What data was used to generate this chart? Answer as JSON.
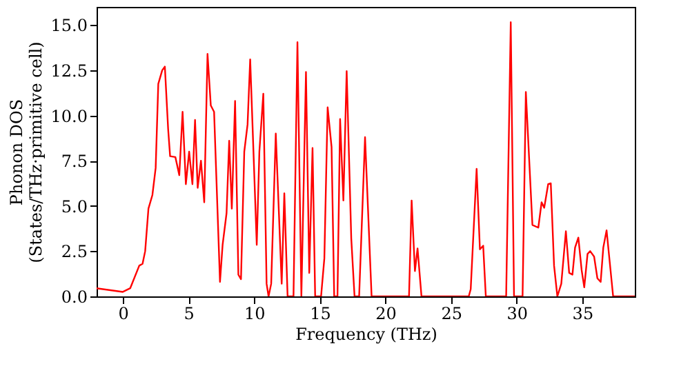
{
  "chart_data": {
    "type": "line",
    "xlabel": "Frequency (THz)",
    "ylabel": "Phonon DOS\n(States/THz·primitive cell)",
    "xlim": [
      -2,
      39
    ],
    "xticks": [
      0,
      5,
      10,
      15,
      20,
      25,
      30,
      35
    ],
    "ylim": [
      0,
      16
    ],
    "yticks": [
      {
        "value": 0,
        "label": "0.0"
      },
      {
        "value": 2.5,
        "label": "2.5"
      },
      {
        "value": 5,
        "label": "5.0"
      },
      {
        "value": 7.5,
        "label": "7.5"
      },
      {
        "value": 10,
        "label": "10.0"
      },
      {
        "value": 12.5,
        "label": "12.5"
      },
      {
        "value": 15,
        "label": "15.0"
      }
    ],
    "grid": false,
    "line_style": "solid",
    "marker": "none",
    "series": [
      {
        "color": "#ff0000",
        "x": [
          -2,
          0,
          0.56,
          1.25,
          1.5,
          1.7,
          1.95,
          2.25,
          2.5,
          2.7,
          3.0,
          3.2,
          3.45,
          3.6,
          4.0,
          4.3,
          4.55,
          4.8,
          5.05,
          5.3,
          5.5,
          5.7,
          5.95,
          6.2,
          6.45,
          6.7,
          6.95,
          7.4,
          7.6,
          7.9,
          8.1,
          8.3,
          8.55,
          8.8,
          9.0,
          9.25,
          9.5,
          9.7,
          9.95,
          10.2,
          10.4,
          10.7,
          10.95,
          11.1,
          11.3,
          11.65,
          12.1,
          12.3,
          12.55,
          13.0,
          13.3,
          13.6,
          13.95,
          14.2,
          14.45,
          14.65,
          15.1,
          15.35,
          15.6,
          15.9,
          16.1,
          16.35,
          16.55,
          16.8,
          17.05,
          17.4,
          17.65,
          18.0,
          18.45,
          18.95,
          21.8,
          22.0,
          22.25,
          22.45,
          22.75,
          26.35,
          26.5,
          26.95,
          27.2,
          27.45,
          27.65,
          29.2,
          29.55,
          29.8,
          30.45,
          30.7,
          31.2,
          31.65,
          31.9,
          32.1,
          32.4,
          32.6,
          32.85,
          33.1,
          33.4,
          33.75,
          34.0,
          34.25,
          34.45,
          34.7,
          34.95,
          35.15,
          35.4,
          35.6,
          35.9,
          36.15,
          36.4,
          36.6,
          36.85,
          37.35,
          39
        ],
        "values": [
          0.45,
          0.25,
          0.45,
          1.7,
          1.8,
          2.5,
          4.85,
          5.6,
          7.1,
          11.75,
          12.5,
          12.7,
          9.25,
          7.75,
          7.7,
          6.7,
          10.2,
          6.2,
          8.0,
          6.2,
          9.75,
          6.0,
          7.5,
          5.2,
          13.4,
          10.55,
          10.2,
          0.8,
          2.85,
          4.6,
          8.6,
          4.85,
          10.8,
          1.2,
          0.95,
          8.0,
          9.5,
          13.1,
          8.0,
          2.85,
          8.0,
          11.2,
          0.7,
          0,
          0.7,
          9.0,
          0.7,
          5.7,
          0,
          0,
          14.05,
          0,
          12.4,
          1.3,
          8.2,
          0,
          0,
          2.1,
          10.45,
          8.25,
          0,
          0,
          9.8,
          5.3,
          12.45,
          3.2,
          0,
          0,
          8.8,
          0,
          0,
          5.3,
          1.4,
          2.65,
          0,
          0,
          0.4,
          7.05,
          2.6,
          2.8,
          0,
          0,
          15.15,
          0,
          0,
          11.3,
          3.95,
          3.8,
          5.2,
          4.9,
          6.2,
          6.25,
          1.7,
          0,
          0.7,
          3.6,
          1.3,
          1.2,
          2.7,
          3.25,
          1.45,
          0.5,
          2.35,
          2.5,
          2.2,
          1.0,
          0.8,
          2.7,
          3.65,
          0,
          0
        ]
      }
    ]
  }
}
